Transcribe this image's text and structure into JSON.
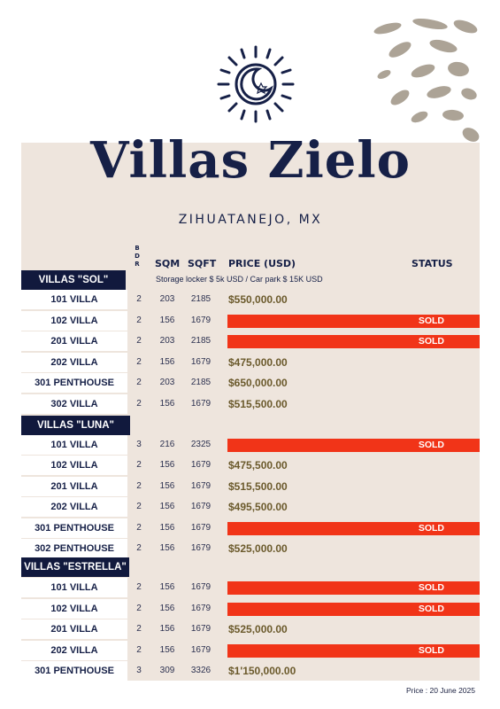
{
  "title": "Villas Zielo",
  "subtitle": "ZIHUATANEJO, MX",
  "headers": {
    "bdr": "B D R",
    "sqm": "SQM",
    "sqft": "SQFT",
    "price": "PRICE (USD)",
    "status": "STATUS"
  },
  "extras": "Storage locker  $ 5k USD  / Car park $ 15K USD",
  "footer": "Price : 20 June  2025",
  "colors": {
    "navy": "#11193d",
    "sold": "#f13418",
    "card": "#eee5dd",
    "price": "#6b5a2c"
  },
  "icons": {
    "logo": "sun-moon-icon",
    "decor": "stone-blobs-decoration"
  },
  "sections": [
    {
      "name": "VILLAS \"SOL\"",
      "units": [
        {
          "name": "101 VILLA",
          "bdr": "2",
          "sqm": "203",
          "sqft": "2185",
          "price": "$550,000.00",
          "status": ""
        },
        {
          "name": "102 VILLA",
          "bdr": "2",
          "sqm": "156",
          "sqft": "1679",
          "price": "",
          "status": "SOLD"
        },
        {
          "name": "201 VILLA",
          "bdr": "2",
          "sqm": "203",
          "sqft": "2185",
          "price": "",
          "status": "SOLD"
        },
        {
          "name": "202 VILLA",
          "bdr": "2",
          "sqm": "156",
          "sqft": "1679",
          "price": "$475,000.00",
          "status": ""
        },
        {
          "name": "301 PENTHOUSE",
          "bdr": "2",
          "sqm": "203",
          "sqft": "2185",
          "price": "$650,000.00",
          "status": ""
        },
        {
          "name": "302 VILLA",
          "bdr": "2",
          "sqm": "156",
          "sqft": "1679",
          "price": "$515,500.00",
          "status": ""
        }
      ]
    },
    {
      "name": "VILLAS \"LUNA\"",
      "units": [
        {
          "name": "101 VILLA",
          "bdr": "3",
          "sqm": "216",
          "sqft": "2325",
          "price": "",
          "status": "SOLD"
        },
        {
          "name": "102 VILLA",
          "bdr": "2",
          "sqm": "156",
          "sqft": "1679",
          "price": "$475,500.00",
          "status": ""
        },
        {
          "name": "201 VILLA",
          "bdr": "2",
          "sqm": "156",
          "sqft": "1679",
          "price": "$515,500.00",
          "status": ""
        },
        {
          "name": "202 VILLA",
          "bdr": "2",
          "sqm": "156",
          "sqft": "1679",
          "price": "$495,500.00",
          "status": ""
        },
        {
          "name": "301 PENTHOUSE",
          "bdr": "2",
          "sqm": "156",
          "sqft": "1679",
          "price": "",
          "status": "SOLD"
        },
        {
          "name": "302 PENTHOUSE",
          "bdr": "2",
          "sqm": "156",
          "sqft": "1679",
          "price": "$525,000.00",
          "status": ""
        }
      ]
    },
    {
      "name": "VILLAS \"ESTRELLA\"",
      "units": [
        {
          "name": "101 VILLA",
          "bdr": "2",
          "sqm": "156",
          "sqft": "1679",
          "price": "",
          "status": "SOLD"
        },
        {
          "name": "102 VILLA",
          "bdr": "2",
          "sqm": "156",
          "sqft": "1679",
          "price": "",
          "status": "SOLD"
        },
        {
          "name": "201 VILLA",
          "bdr": "2",
          "sqm": "156",
          "sqft": "1679",
          "price": "$525,000.00",
          "status": ""
        },
        {
          "name": "202 VILLA",
          "bdr": "2",
          "sqm": "156",
          "sqft": "1679",
          "price": "",
          "status": "SOLD"
        },
        {
          "name": "301 PENTHOUSE",
          "bdr": "3",
          "sqm": "309",
          "sqft": "3326",
          "price": "$1'150,000.00",
          "status": ""
        }
      ]
    }
  ]
}
